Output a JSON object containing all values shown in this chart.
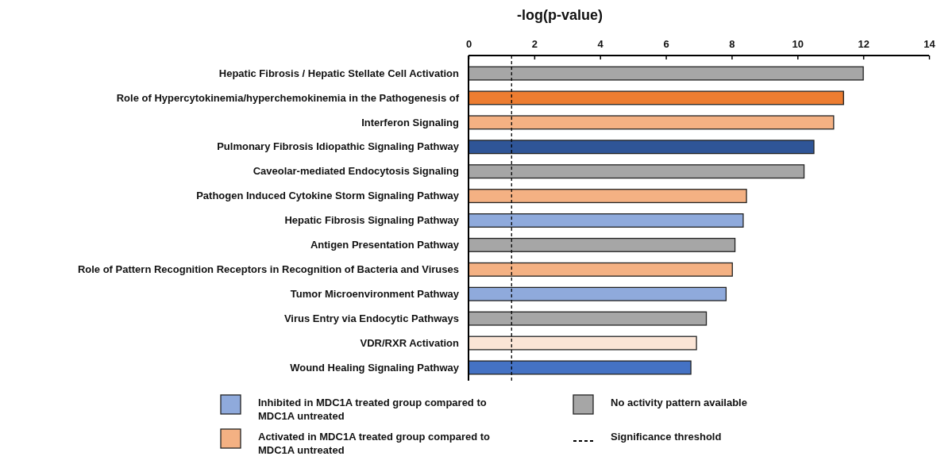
{
  "chart_data": {
    "type": "bar",
    "orientation": "horizontal",
    "stacked": true,
    "xlabel": "-log(p-value)",
    "categories": [
      "Hepatic Fibrosis / Hepatic Stellate Cell Activation",
      "Role of Hypercytokinemia/hyperchemokinemia in the Pathogenesis of",
      "Interferon Signaling",
      "Pulmonary Fibrosis Idiopathic Signaling Pathway",
      "Caveolar-mediated Endocytosis Signaling",
      "Pathogen Induced Cytokine Storm Signaling Pathway",
      "Hepatic Fibrosis Signaling Pathway",
      "Antigen Presentation Pathway",
      "Role of Pattern Recognition Receptors in Recognition of Bacteria and Viruses",
      "Tumor Microenvironment Pathway",
      "Virus Entry via Endocytic Pathways",
      "VDR/RXR Activation",
      "Wound Healing Signaling Pathway"
    ],
    "series": [
      {
        "name": "Inhibited in MDC1A treated group compared to MDC1A untreated",
        "color": "#8faadc",
        "values": [
          null,
          null,
          null,
          10.5,
          null,
          null,
          8.35,
          null,
          null,
          7.83,
          null,
          null,
          6.76
        ],
        "colors": [
          null,
          null,
          null,
          "#2f5597",
          null,
          null,
          "#8faadc",
          null,
          null,
          "#8faadc",
          null,
          null,
          "#4472c4"
        ]
      },
      {
        "name": "Activated in MDC1A treated group compared to MDC1A untreated",
        "color": "#f4b183",
        "values": [
          null,
          11.4,
          11.1,
          null,
          null,
          8.45,
          null,
          null,
          8.02,
          null,
          null,
          6.93,
          null
        ],
        "colors": [
          null,
          "#ed7d31",
          "#f4b183",
          null,
          null,
          "#f4b183",
          null,
          null,
          "#f4b183",
          null,
          null,
          "#fbe5d6",
          null
        ]
      },
      {
        "name": "No activity pattern available",
        "color": "#a6a6a6",
        "values": [
          12.0,
          null,
          null,
          null,
          10.2,
          null,
          null,
          8.1,
          null,
          null,
          7.23,
          null,
          null
        ],
        "colors": [
          "#a6a6a6",
          null,
          null,
          null,
          "#a6a6a6",
          null,
          null,
          "#a6a6a6",
          null,
          null,
          "#a6a6a6",
          null,
          null
        ]
      }
    ],
    "xlim": [
      0,
      14
    ],
    "xticks": [
      0,
      2,
      4,
      6,
      8,
      10,
      12,
      14
    ],
    "ref_lines": [
      {
        "axis": "x",
        "value": 1.31,
        "label": "Significance threshold",
        "line_style": "dashed",
        "color": "#000000"
      }
    ],
    "legend": "bottom",
    "grid": false
  }
}
